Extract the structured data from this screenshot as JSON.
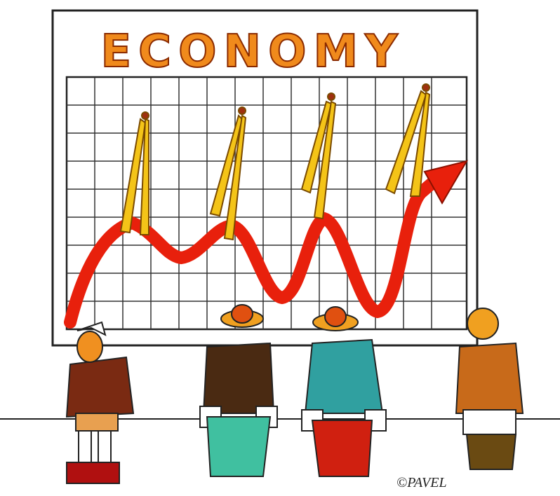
{
  "title": "ECONOMY",
  "signature": "©PAVEL"
}
